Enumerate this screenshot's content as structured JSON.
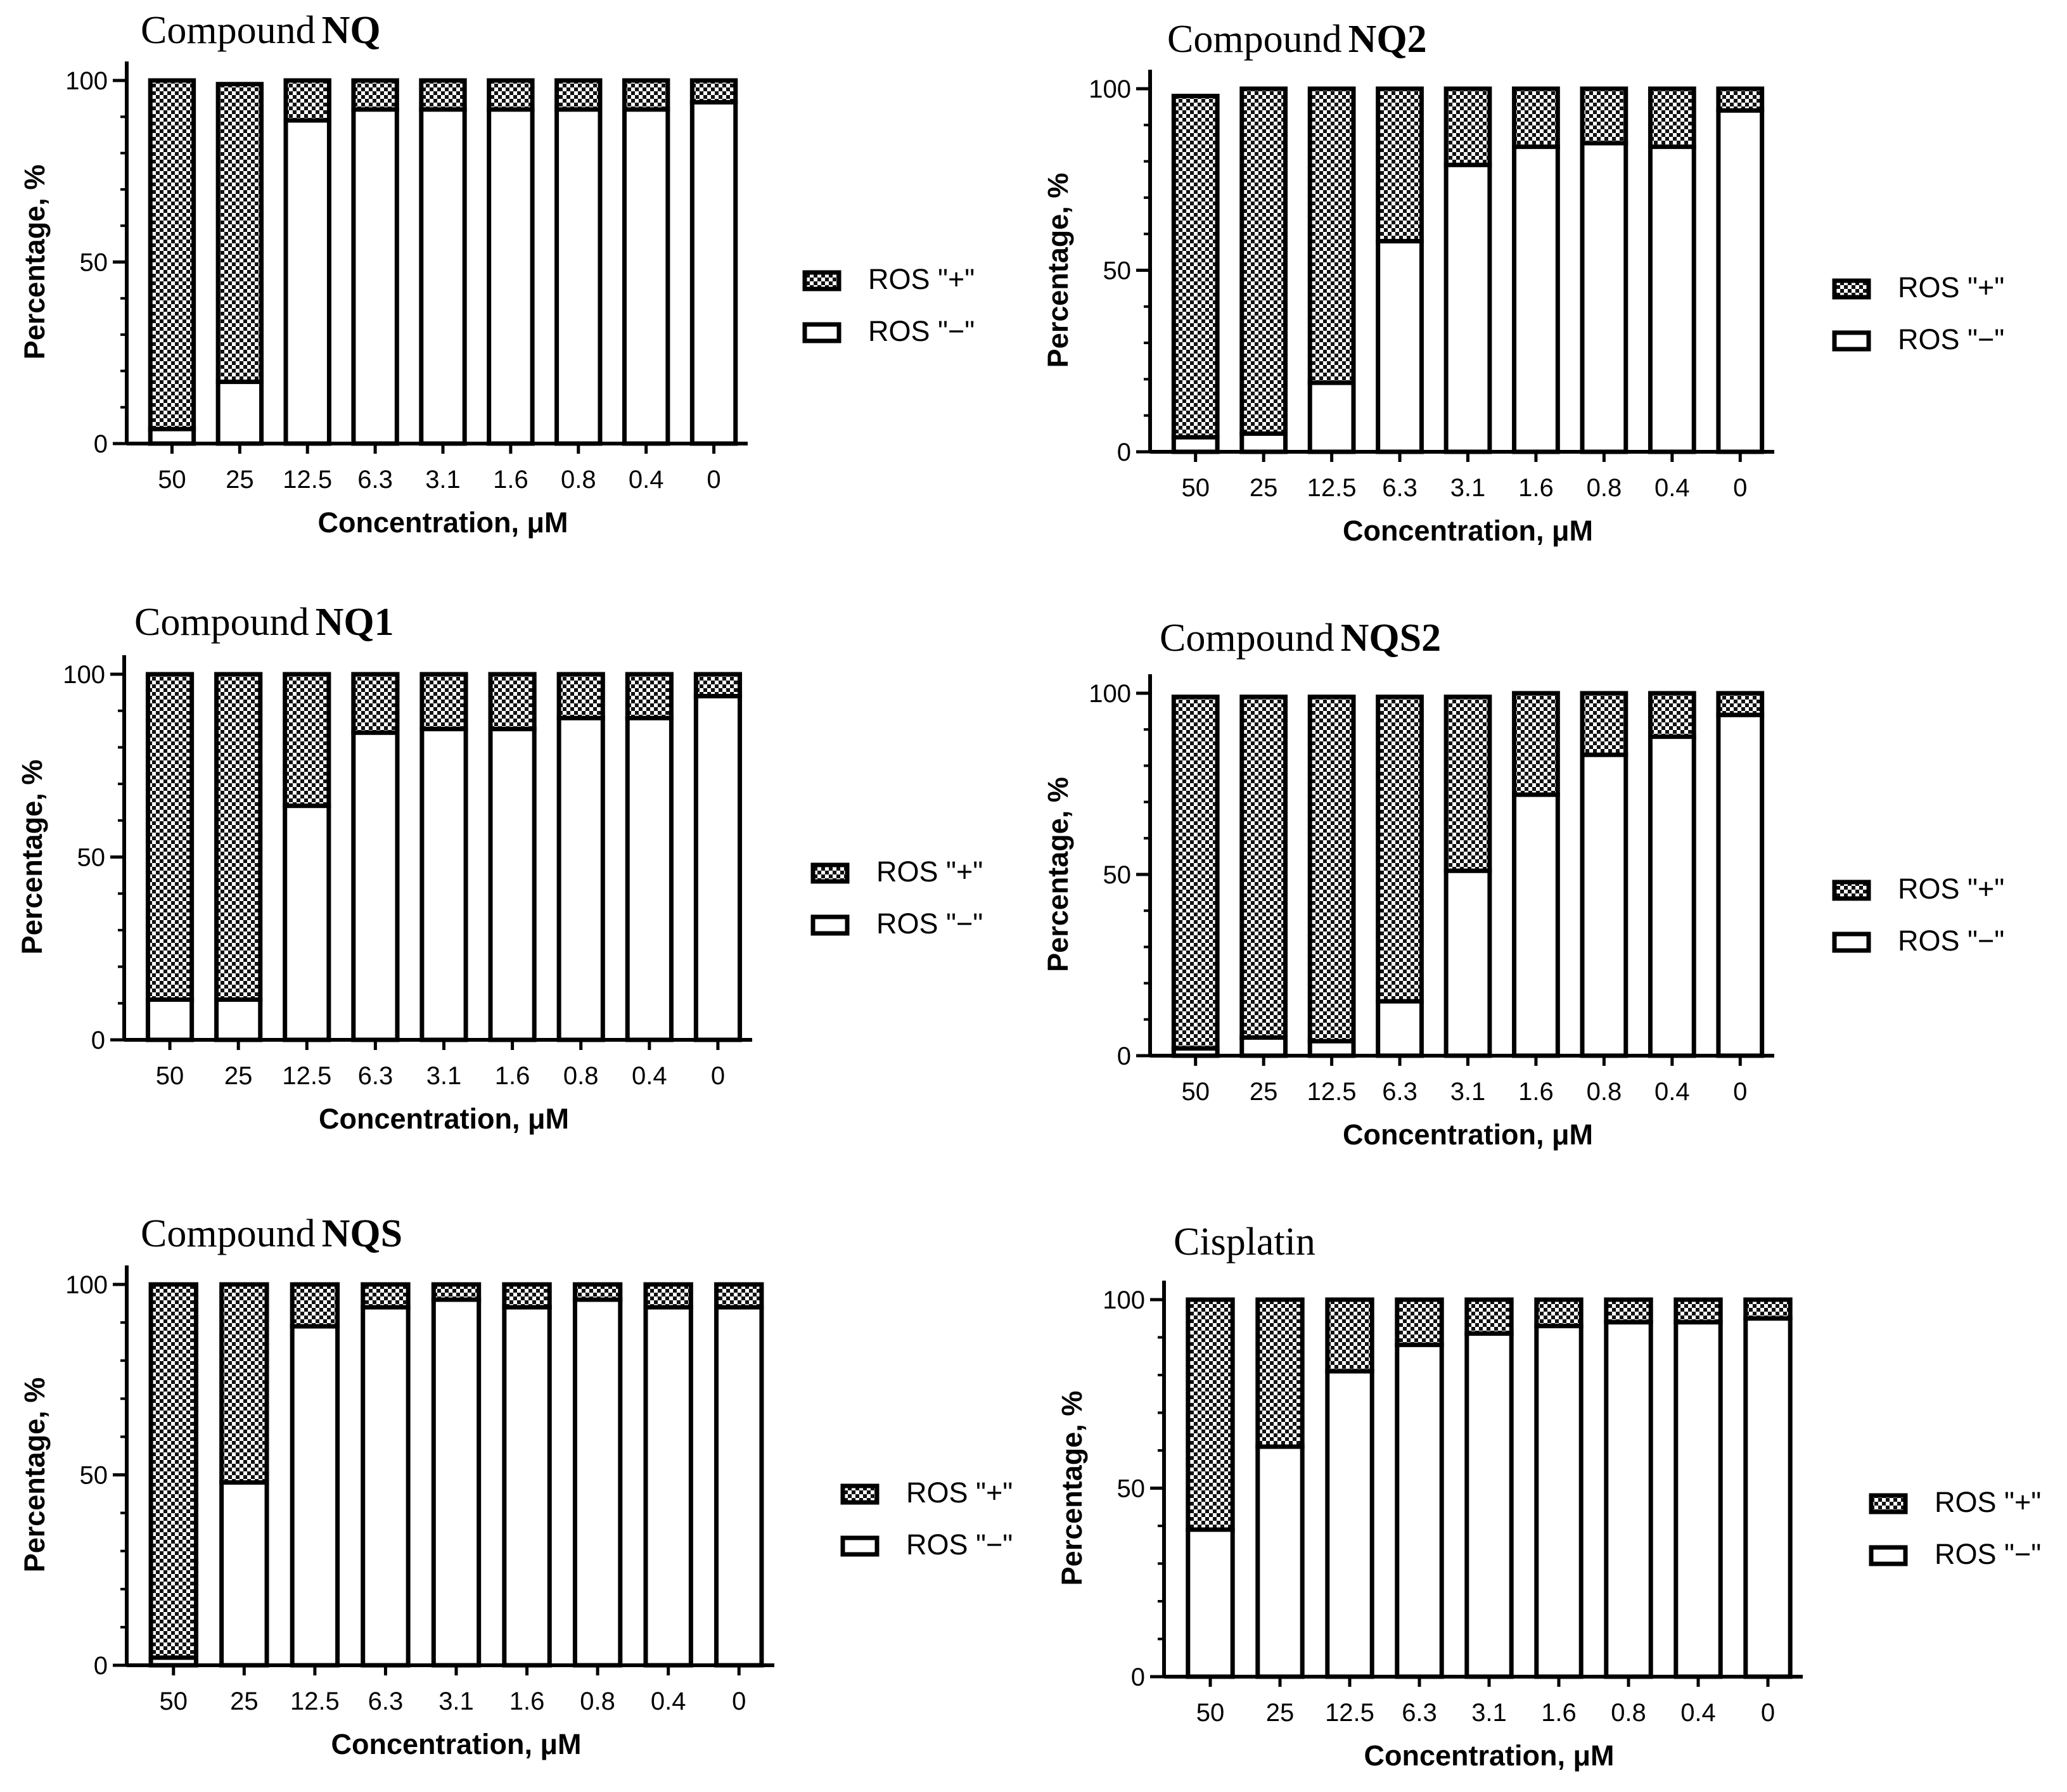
{
  "figure": {
    "legend": {
      "positive_label": "ROS \"+\"",
      "negative_label": "ROS \"−\""
    }
  },
  "chart_data": [
    {
      "type": "bar",
      "stacked": true,
      "title_prefix": "Compound",
      "title_bold": "NQ",
      "xlabel": "Concentration, μM",
      "ylabel": "Percentage, %",
      "ylim": [
        0,
        100
      ],
      "yticks": [
        0,
        50,
        100
      ],
      "categories": [
        "50",
        "25",
        "12.5",
        "6.3",
        "3.1",
        "1.6",
        "0.8",
        "0.4",
        "0"
      ],
      "legend_position": "right",
      "series": [
        {
          "name": "ROS \"−\"",
          "pattern": "white",
          "values": [
            4,
            17,
            89,
            92,
            92,
            92,
            92,
            92,
            94
          ]
        },
        {
          "name": "ROS \"+\"",
          "pattern": "checkered",
          "values": [
            96,
            82,
            11,
            8,
            8,
            8,
            8,
            8,
            6
          ]
        }
      ]
    },
    {
      "type": "bar",
      "stacked": true,
      "title_prefix": "Compound",
      "title_bold": "NQ2",
      "xlabel": "Concentration, μM",
      "ylabel": "Percentage, %",
      "ylim": [
        0,
        100
      ],
      "yticks": [
        0,
        50,
        100
      ],
      "categories": [
        "50",
        "25",
        "12.5",
        "6.3",
        "3.1",
        "1.6",
        "0.8",
        "0.4",
        "0"
      ],
      "legend_position": "right",
      "series": [
        {
          "name": "ROS \"−\"",
          "pattern": "white",
          "values": [
            4,
            5,
            19,
            58,
            79,
            84,
            85,
            84,
            94
          ]
        },
        {
          "name": "ROS \"+\"",
          "pattern": "checkered",
          "values": [
            94,
            95,
            81,
            42,
            21,
            16,
            15,
            16,
            6
          ]
        }
      ]
    },
    {
      "type": "bar",
      "stacked": true,
      "title_prefix": "Compound",
      "title_bold": "NQ1",
      "xlabel": "Concentration, μM",
      "ylabel": "Percentage, %",
      "ylim": [
        0,
        100
      ],
      "yticks": [
        0,
        50,
        100
      ],
      "categories": [
        "50",
        "25",
        "12.5",
        "6.3",
        "3.1",
        "1.6",
        "0.8",
        "0.4",
        "0"
      ],
      "legend_position": "right",
      "series": [
        {
          "name": "ROS \"−\"",
          "pattern": "white",
          "values": [
            11,
            11,
            64,
            84,
            85,
            85,
            88,
            88,
            94
          ]
        },
        {
          "name": "ROS \"+\"",
          "pattern": "checkered",
          "values": [
            89,
            89,
            36,
            16,
            15,
            15,
            12,
            12,
            6
          ]
        }
      ]
    },
    {
      "type": "bar",
      "stacked": true,
      "title_prefix": "Compound",
      "title_bold": "NQS2",
      "xlabel": "Concentration, μM",
      "ylabel": "Percentage, %",
      "ylim": [
        0,
        100
      ],
      "yticks": [
        0,
        50,
        100
      ],
      "categories": [
        "50",
        "25",
        "12.5",
        "6.3",
        "3.1",
        "1.6",
        "0.8",
        "0.4",
        "0"
      ],
      "legend_position": "right",
      "series": [
        {
          "name": "ROS \"−\"",
          "pattern": "white",
          "values": [
            2,
            5,
            4,
            15,
            51,
            72,
            83,
            88,
            94
          ]
        },
        {
          "name": "ROS \"+\"",
          "pattern": "checkered",
          "values": [
            97,
            94,
            95,
            84,
            48,
            28,
            17,
            12,
            6
          ]
        }
      ]
    },
    {
      "type": "bar",
      "stacked": true,
      "title_prefix": "Compound",
      "title_bold": "NQS",
      "xlabel": "Concentration, μM",
      "ylabel": "Percentage, %",
      "ylim": [
        0,
        100
      ],
      "yticks": [
        0,
        50,
        100
      ],
      "categories": [
        "50",
        "25",
        "12.5",
        "6.3",
        "3.1",
        "1.6",
        "0.8",
        "0.4",
        "0"
      ],
      "legend_position": "right",
      "series": [
        {
          "name": "ROS \"−\"",
          "pattern": "white",
          "values": [
            2,
            48,
            89,
            94,
            96,
            94,
            96,
            94,
            94
          ]
        },
        {
          "name": "ROS \"+\"",
          "pattern": "checkered",
          "values": [
            98,
            52,
            11,
            6,
            4,
            6,
            4,
            6,
            6
          ]
        }
      ]
    },
    {
      "type": "bar",
      "stacked": true,
      "title_prefix": "Cisplatin",
      "title_bold": "",
      "xlabel": "Concentration, μM",
      "ylabel": "Percentage, %",
      "ylim": [
        0,
        100
      ],
      "yticks": [
        0,
        50,
        100
      ],
      "categories": [
        "50",
        "25",
        "12.5",
        "6.3",
        "3.1",
        "1.6",
        "0.8",
        "0.4",
        "0"
      ],
      "legend_position": "right",
      "series": [
        {
          "name": "ROS \"−\"",
          "pattern": "white",
          "values": [
            39,
            61,
            81,
            88,
            91,
            93,
            94,
            94,
            95
          ]
        },
        {
          "name": "ROS \"+\"",
          "pattern": "checkered",
          "values": [
            61,
            39,
            19,
            12,
            9,
            7,
            6,
            6,
            5
          ]
        }
      ]
    }
  ]
}
